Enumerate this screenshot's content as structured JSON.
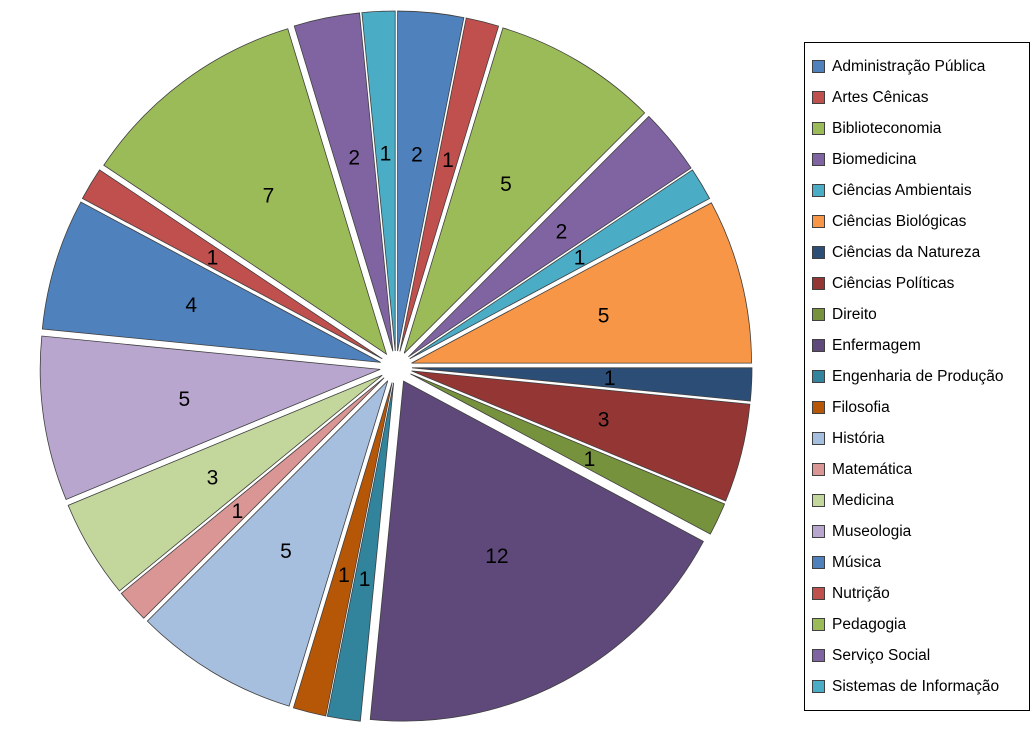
{
  "background_color": "#FFFFFF",
  "chart_data": {
    "type": "pie",
    "title": "",
    "legend_position": "right",
    "direction": "clockwise",
    "start_angle_deg": 0,
    "exploded": true,
    "data_labels": "value",
    "total": 64,
    "categories": [
      "Administração Pública",
      "Artes Cênicas",
      "Biblioteconomia",
      "Biomedicina",
      "Ciências Ambientais",
      "Ciências Biológicas",
      "Ciências da Natureza",
      "Ciências Políticas",
      "Direito",
      "Enfermagem",
      "Engenharia de Produção",
      "Filosofia",
      "História",
      "Matemática",
      "Medicina",
      "Museologia",
      "Música",
      "Nutrição",
      "Pedagogia",
      "Serviço Social",
      "Sistemas de Informação"
    ],
    "values": [
      2,
      1,
      5,
      2,
      1,
      5,
      1,
      3,
      1,
      12,
      1,
      1,
      5,
      1,
      3,
      5,
      4,
      1,
      7,
      2,
      1
    ],
    "colors": [
      "#4F81BD",
      "#C0504D",
      "#9BBB59",
      "#8064A2",
      "#4BACC6",
      "#F79646",
      "#2C4D75",
      "#943634",
      "#76923C",
      "#5F497A",
      "#31849B",
      "#B65708",
      "#A7BFDE",
      "#D99694",
      "#C3D69B",
      "#B8A6CE",
      "#4F81BD",
      "#C0504D",
      "#9BBB59",
      "#8064A2",
      "#4BACC6"
    ],
    "slice_border_color": "#3F3F3F",
    "label_color": "#000000"
  },
  "legend": {
    "border_color": "#000000",
    "background": "#FFFFFF"
  }
}
